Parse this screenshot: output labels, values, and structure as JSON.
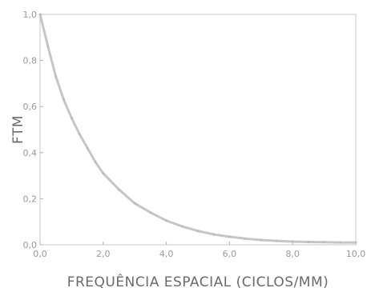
{
  "chart_data": {
    "type": "line",
    "title": "",
    "xlabel": "FREQUÊNCIA ESPACIAL (CICLOS/MM)",
    "ylabel": "FTM",
    "xlim": [
      0,
      10
    ],
    "ylim": [
      0,
      1
    ],
    "x_ticks": [
      "0,0",
      "2,0",
      "4,0",
      "6,0",
      "8,0",
      "10,0"
    ],
    "y_ticks": [
      "0,0",
      "0,2",
      "0,4",
      "0,6",
      "0,8",
      "1,0"
    ],
    "grid": false,
    "legend": "none",
    "series": [
      {
        "color": "#b8b8b8",
        "x": [
          0,
          0.25,
          0.5,
          0.75,
          1.0,
          1.25,
          1.5,
          1.75,
          2.0,
          2.5,
          3.0,
          3.5,
          4.0,
          4.5,
          5.0,
          5.5,
          6.0,
          6.5,
          7.0,
          7.5,
          8.0,
          8.5,
          9.0,
          9.5,
          10.0
        ],
        "y": [
          1.0,
          0.86,
          0.73,
          0.63,
          0.55,
          0.48,
          0.42,
          0.36,
          0.31,
          0.24,
          0.18,
          0.14,
          0.105,
          0.08,
          0.06,
          0.045,
          0.035,
          0.027,
          0.021,
          0.017,
          0.014,
          0.012,
          0.011,
          0.01,
          0.01
        ]
      }
    ]
  }
}
